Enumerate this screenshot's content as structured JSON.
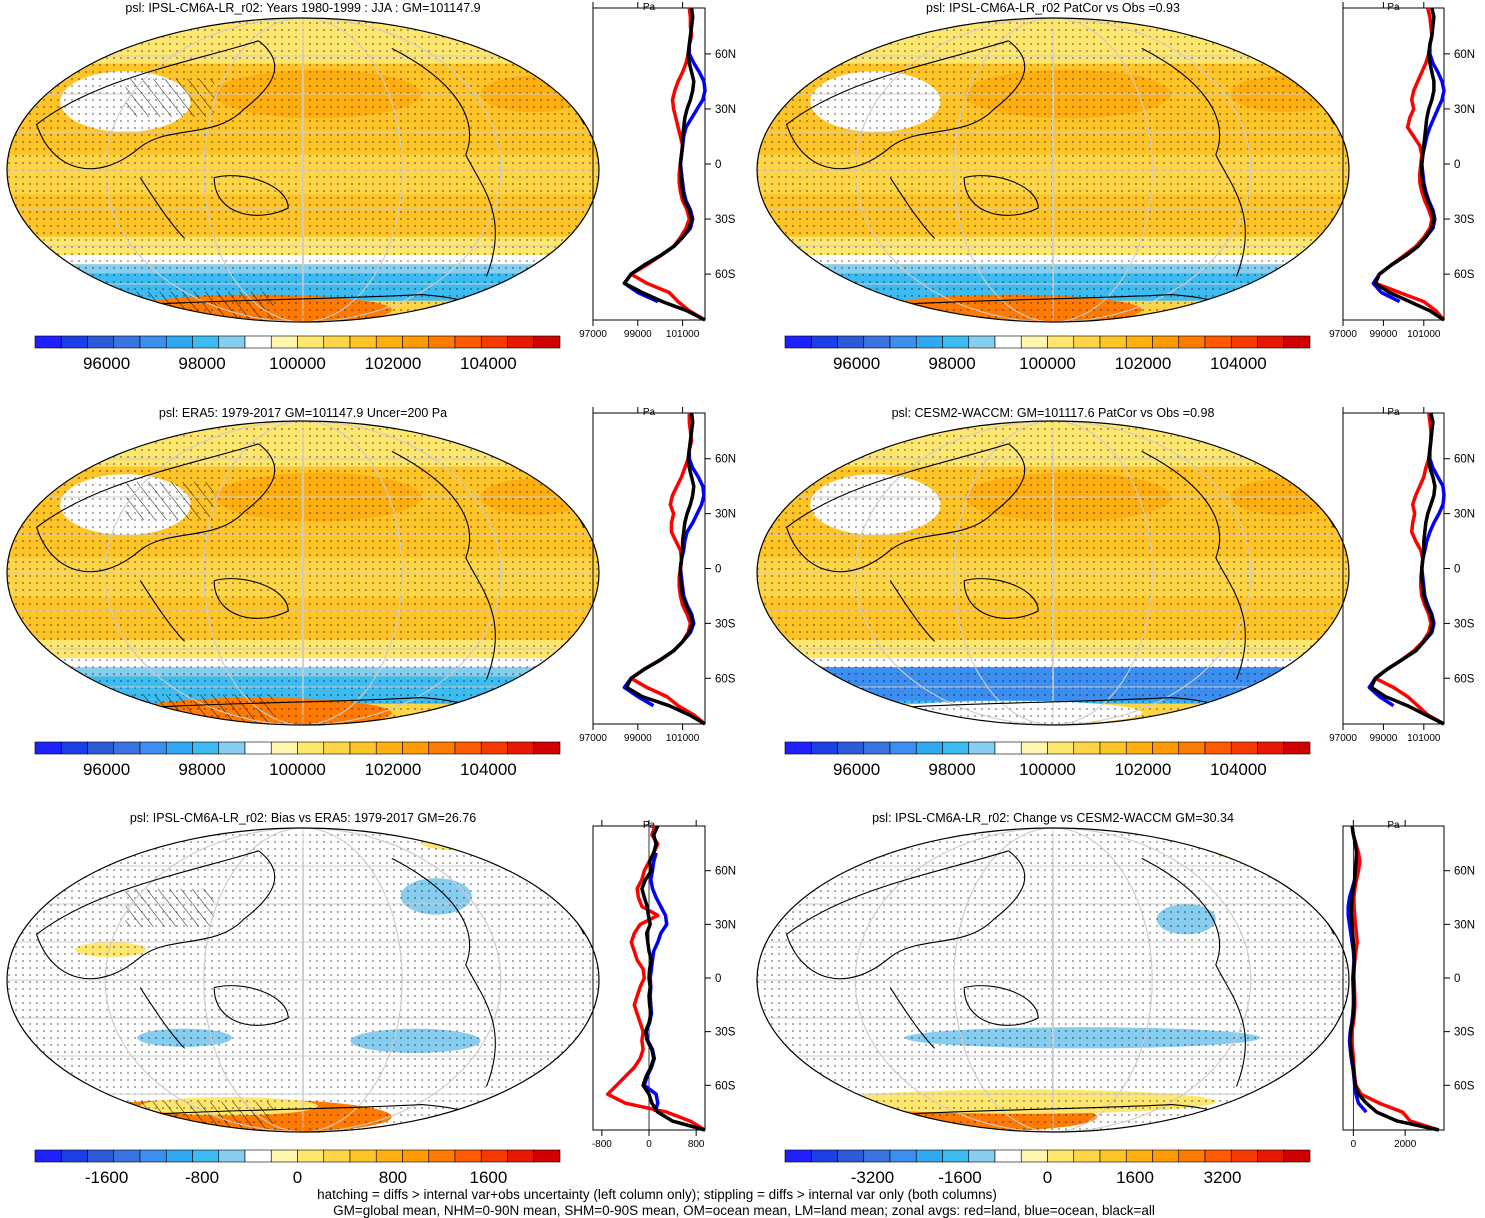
{
  "figure": {
    "footnote_lines": [
      "hatching = diffs > internal var+obs uncertainty (left column only); stippling = diffs > internal var only (both columns)",
      "GM=global mean, NHM=0-90N mean, SHM=0-90S mean, OM=ocean mean, LM=land mean; zonal avgs: red=land, blue=ocean, black=all"
    ]
  },
  "colors": {
    "land_line": "#ff0000",
    "ocean_line": "#0000ff",
    "all_line": "#000000",
    "coast": "#000000",
    "graticule": "#cccccc"
  },
  "chart_data": [
    {
      "type": "heatmap",
      "title": "psl: IPSL-CM6A-LR_r02: Years 1980-1999 : JJA : GM=101147.9",
      "colorbar": {
        "range": [
          94500,
          105500
        ],
        "ticks": [
          96000,
          98000,
          100000,
          102000,
          104000
        ],
        "colors": [
          "#2020ff",
          "#1a3fe6",
          "#2d5ad6",
          "#3a74e0",
          "#3c8ff0",
          "#30a8f2",
          "#3cbcf0",
          "#86cdf0",
          "#ffffff",
          "#fff6b0",
          "#ffe66e",
          "#ffd548",
          "#ffc428",
          "#ffb010",
          "#ff9a00",
          "#ff7a00",
          "#ff5a00",
          "#f53a00",
          "#e81800",
          "#d00000"
        ]
      },
      "zonal": {
        "axis_label": "Pa",
        "xlim": [
          97000,
          102000
        ],
        "xticks": [
          97000,
          99000,
          101000
        ],
        "lat_ticks": [
          "60N",
          "30N",
          "0",
          "30S",
          "60S"
        ],
        "lat": [
          -85,
          -80,
          -75,
          -70,
          -65,
          -60,
          -55,
          -50,
          -45,
          -40,
          -35,
          -30,
          -25,
          -20,
          -15,
          -10,
          -5,
          0,
          5,
          10,
          15,
          20,
          25,
          30,
          35,
          40,
          45,
          50,
          55,
          60,
          65,
          70,
          75,
          80,
          85
        ],
        "all": [
          102200,
          101200,
          100100,
          99200,
          98400,
          98700,
          99300,
          100000,
          100600,
          101000,
          101300,
          101400,
          101300,
          101100,
          101000,
          100950,
          100920,
          100900,
          100950,
          101000,
          101000,
          101050,
          101100,
          101200,
          101350,
          101450,
          101500,
          101400,
          101300,
          101250,
          101300,
          101350,
          101400,
          101450,
          101400
        ],
        "land": [
          102200,
          101300,
          100800,
          100400,
          99400,
          98700,
          99400,
          100000,
          100600,
          100900,
          101150,
          101300,
          101200,
          101000,
          100900,
          100850,
          100850,
          100900,
          100950,
          101000,
          100900,
          100800,
          100700,
          100600,
          100550,
          100650,
          100800,
          101000,
          101150,
          101250,
          101300,
          101400,
          101350,
          101350,
          101300
        ],
        "ocean": [
          null,
          null,
          99900,
          99000,
          98400,
          98700,
          99300,
          100000,
          100600,
          101000,
          101350,
          101450,
          101350,
          101150,
          101050,
          101000,
          100950,
          100900,
          100950,
          101000,
          101050,
          101150,
          101400,
          101650,
          101900,
          102000,
          101950,
          101750,
          101500,
          101300,
          101300,
          101400,
          null,
          null,
          null
        ]
      }
    },
    {
      "type": "heatmap",
      "title": "psl: IPSL-CM6A-LR_r02 PatCor vs Obs =0.93",
      "colorbar": {
        "range": [
          94500,
          105500
        ],
        "ticks": [
          96000,
          98000,
          100000,
          102000,
          104000
        ]
      },
      "zonal": {
        "axis_label": "Pa",
        "xlim": [
          97000,
          102000
        ],
        "xticks": [
          97000,
          99000,
          101000
        ],
        "lat_ticks": [
          "60N",
          "30N",
          "0",
          "30S",
          "60S"
        ],
        "lat": [
          -85,
          -80,
          -75,
          -70,
          -65,
          -60,
          -55,
          -50,
          -45,
          -40,
          -35,
          -30,
          -25,
          -20,
          -15,
          -10,
          -5,
          0,
          5,
          10,
          15,
          20,
          25,
          30,
          35,
          40,
          45,
          50,
          55,
          60,
          65,
          70,
          75,
          80,
          85
        ],
        "all": [
          102200,
          101300,
          100300,
          99300,
          98600,
          98800,
          99400,
          100100,
          100700,
          101100,
          101400,
          101500,
          101400,
          101200,
          101050,
          100950,
          100900,
          100900,
          100950,
          101000,
          101050,
          101100,
          101150,
          101250,
          101400,
          101500,
          101500,
          101400,
          101300,
          101250,
          101300,
          101400,
          101450,
          101500,
          101400
        ],
        "land": [
          102200,
          101600,
          101000,
          99800,
          98600,
          98800,
          99400,
          100000,
          100600,
          101000,
          101300,
          101400,
          101250,
          101050,
          100900,
          100800,
          100800,
          100850,
          100900,
          100800,
          100500,
          100200,
          100300,
          100500,
          100400,
          100500,
          100700,
          100900,
          101100,
          101250,
          101300,
          101400,
          101350,
          101300,
          101200
        ],
        "ocean": [
          null,
          null,
          99800,
          98900,
          98500,
          98800,
          99400,
          100100,
          100700,
          101100,
          101450,
          101550,
          101450,
          101250,
          101100,
          101000,
          100950,
          100900,
          100950,
          101050,
          101150,
          101300,
          101500,
          101700,
          101900,
          102000,
          101900,
          101700,
          101450,
          101300,
          101300,
          101400,
          null,
          null,
          null
        ]
      }
    },
    {
      "type": "heatmap",
      "title": "psl: ERA5: 1979-2017 GM=101147.9 Uncer=200 Pa",
      "colorbar": {
        "range": [
          94500,
          105500
        ],
        "ticks": [
          96000,
          98000,
          100000,
          102000,
          104000
        ]
      },
      "zonal": {
        "axis_label": "Pa",
        "xlim": [
          97000,
          102000
        ],
        "xticks": [
          97000,
          99000,
          101000
        ],
        "lat_ticks": [
          "60N",
          "30N",
          "0",
          "30S",
          "60S"
        ],
        "lat": [
          -85,
          -80,
          -75,
          -70,
          -65,
          -60,
          -55,
          -50,
          -45,
          -40,
          -35,
          -30,
          -25,
          -20,
          -15,
          -10,
          -5,
          0,
          5,
          10,
          15,
          20,
          25,
          30,
          35,
          40,
          45,
          50,
          55,
          60,
          65,
          70,
          75,
          80,
          85
        ],
        "all": [
          102100,
          101300,
          100400,
          99200,
          98500,
          98700,
          99300,
          100000,
          100600,
          101000,
          101300,
          101450,
          101350,
          101150,
          101000,
          100950,
          100900,
          100900,
          100950,
          101000,
          101000,
          101050,
          101100,
          101200,
          101350,
          101450,
          101500,
          101400,
          101300,
          101250,
          101300,
          101350,
          101400,
          101450,
          101400
        ],
        "land": [
          102100,
          101500,
          100800,
          100300,
          99400,
          98700,
          99300,
          100000,
          100600,
          101000,
          101250,
          101350,
          101200,
          101000,
          100900,
          100850,
          100850,
          100900,
          100950,
          100900,
          100700,
          100500,
          100500,
          100600,
          100450,
          100550,
          100750,
          100950,
          101100,
          101250,
          101300,
          101400,
          101350,
          101300,
          101300
        ],
        "ocean": [
          null,
          null,
          99700,
          99000,
          98400,
          98700,
          99300,
          100000,
          100600,
          101000,
          101350,
          101500,
          101400,
          101200,
          101050,
          101000,
          100950,
          100900,
          100950,
          101050,
          101100,
          101200,
          101450,
          101650,
          101850,
          101950,
          101900,
          101700,
          101450,
          101300,
          101300,
          101400,
          null,
          null,
          null
        ]
      }
    },
    {
      "type": "heatmap",
      "title": "psl: CESM2-WACCM: GM=101117.6 PatCor vs Obs =0.98",
      "colorbar": {
        "range": [
          94500,
          105500
        ],
        "ticks": [
          96000,
          98000,
          100000,
          102000,
          104000
        ]
      },
      "zonal": {
        "axis_label": "Pa",
        "xlim": [
          97000,
          102000
        ],
        "xticks": [
          97000,
          99000,
          101000
        ],
        "lat_ticks": [
          "60N",
          "30N",
          "0",
          "30S",
          "60S"
        ],
        "lat": [
          -85,
          -80,
          -75,
          -70,
          -65,
          -60,
          -55,
          -50,
          -45,
          -40,
          -35,
          -30,
          -25,
          -20,
          -15,
          -10,
          -5,
          0,
          5,
          10,
          15,
          20,
          25,
          30,
          35,
          40,
          45,
          50,
          55,
          60,
          65,
          70,
          75,
          80,
          85
        ],
        "all": [
          102000,
          101100,
          100200,
          99100,
          98400,
          98600,
          99200,
          99900,
          100600,
          101000,
          101350,
          101450,
          101350,
          101150,
          101000,
          100950,
          100900,
          100900,
          100950,
          101000,
          101000,
          101050,
          101100,
          101200,
          101350,
          101500,
          101550,
          101450,
          101300,
          101250,
          101300,
          101350,
          101400,
          101450,
          101350
        ],
        "land": [
          102000,
          101200,
          100700,
          100200,
          99500,
          98600,
          99200,
          99900,
          100500,
          100950,
          101250,
          101350,
          101250,
          101050,
          100900,
          100850,
          100850,
          100900,
          100950,
          100850,
          100600,
          100400,
          100450,
          100550,
          100450,
          100600,
          100800,
          101000,
          101100,
          101250,
          101300,
          101350,
          101350,
          101300,
          101250
        ],
        "ocean": [
          null,
          null,
          99500,
          98800,
          98300,
          98600,
          99200,
          99900,
          100600,
          101000,
          101400,
          101500,
          101400,
          101200,
          101050,
          101000,
          100950,
          100900,
          100950,
          101050,
          101150,
          101300,
          101500,
          101750,
          101950,
          102050,
          101950,
          101700,
          101450,
          101300,
          101300,
          101350,
          null,
          null,
          null
        ]
      }
    },
    {
      "type": "heatmap",
      "title": "psl: IPSL-CM6A-LR_r02: Bias vs ERA5: 1979-2017 GM=26.76",
      "colorbar": {
        "range": [
          -2200,
          2200
        ],
        "ticks": [
          -1600,
          -800,
          0,
          800,
          1600
        ]
      },
      "zonal": {
        "axis_label": "Pa",
        "xlim": [
          -950,
          950
        ],
        "xticks": [
          -800,
          0,
          800
        ],
        "lat_ticks": [
          "60N",
          "30N",
          "0",
          "30S",
          "60S"
        ],
        "lat": [
          -85,
          -80,
          -75,
          -70,
          -65,
          -60,
          -55,
          -50,
          -45,
          -40,
          -35,
          -30,
          -25,
          -20,
          -15,
          -10,
          -5,
          0,
          5,
          10,
          15,
          20,
          25,
          30,
          35,
          40,
          45,
          50,
          55,
          60,
          65,
          70,
          75,
          80,
          85
        ],
        "all": [
          1000,
          400,
          150,
          50,
          0,
          -100,
          -50,
          30,
          80,
          50,
          -30,
          -60,
          0,
          30,
          10,
          0,
          20,
          0,
          10,
          40,
          0,
          -20,
          -40,
          20,
          -10,
          -30,
          -80,
          -120,
          -60,
          40,
          10,
          80,
          120,
          80,
          150
        ],
        "land": [
          1000,
          700,
          300,
          -400,
          -700,
          -550,
          -400,
          -250,
          -150,
          -100,
          -120,
          -100,
          -150,
          -200,
          -250,
          -200,
          -150,
          -80,
          -100,
          -200,
          -250,
          -300,
          -250,
          -150,
          150,
          -120,
          -180,
          -200,
          -120,
          -80,
          0,
          80,
          150,
          50,
          100
        ],
        "ocean": [
          null,
          null,
          100,
          150,
          120,
          -80,
          -30,
          40,
          90,
          60,
          -20,
          -50,
          10,
          40,
          30,
          20,
          30,
          20,
          40,
          60,
          80,
          150,
          200,
          300,
          280,
          200,
          120,
          60,
          30,
          60,
          80,
          120,
          null,
          null,
          null
        ]
      }
    },
    {
      "type": "heatmap",
      "title": "psl: IPSL-CM6A-LR_r02: Change vs CESM2-WACCM GM=30.34",
      "colorbar": {
        "range": [
          -4800,
          4800
        ],
        "ticks": [
          -3200,
          -1600,
          0,
          1600,
          3200
        ]
      },
      "zonal": {
        "axis_label": "Pa",
        "xlim": [
          -400,
          3500
        ],
        "xticks": [
          0,
          2000
        ],
        "lat_ticks": [
          "60N",
          "30N",
          "0",
          "30S",
          "60S"
        ],
        "lat": [
          -85,
          -80,
          -75,
          -70,
          -65,
          -60,
          -55,
          -50,
          -45,
          -40,
          -35,
          -30,
          -25,
          -20,
          -15,
          -10,
          -5,
          0,
          5,
          10,
          15,
          20,
          25,
          30,
          35,
          40,
          45,
          50,
          55,
          60,
          65,
          70,
          75,
          80,
          85
        ],
        "all": [
          3300,
          1700,
          900,
          500,
          200,
          80,
          30,
          0,
          -50,
          -100,
          -120,
          -100,
          -50,
          0,
          20,
          20,
          10,
          0,
          20,
          40,
          20,
          0,
          -30,
          -50,
          -80,
          -70,
          -50,
          0,
          50,
          80,
          100,
          120,
          80,
          0,
          -50
        ],
        "land": [
          3300,
          2200,
          1900,
          1000,
          300,
          100,
          50,
          20,
          0,
          -30,
          -60,
          -60,
          0,
          40,
          60,
          50,
          40,
          20,
          30,
          60,
          100,
          150,
          120,
          80,
          50,
          30,
          20,
          60,
          120,
          200,
          250,
          200,
          100,
          0,
          -50
        ],
        "ocean": [
          null,
          null,
          500,
          200,
          100,
          50,
          20,
          -20,
          -80,
          -120,
          -150,
          -120,
          -60,
          -20,
          0,
          0,
          -10,
          -20,
          0,
          20,
          0,
          -50,
          -100,
          -150,
          -200,
          -200,
          -150,
          -50,
          50,
          100,
          120,
          150,
          null,
          null,
          null
        ]
      }
    }
  ]
}
